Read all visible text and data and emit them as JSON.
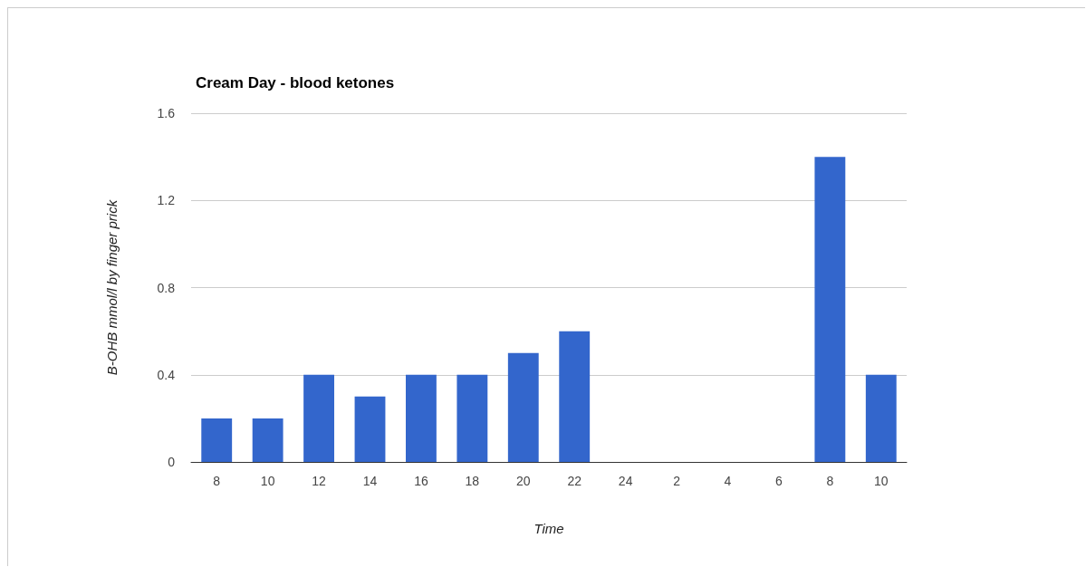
{
  "chart_data": {
    "type": "bar",
    "title": "Cream Day - blood ketones",
    "xlabel": "Time",
    "ylabel": "B-OHB mmol/l by finger prick",
    "categories": [
      "8",
      "10",
      "12",
      "14",
      "16",
      "18",
      "20",
      "22",
      "24",
      "2",
      "4",
      "6",
      "8",
      "10"
    ],
    "values": [
      0.2,
      0.2,
      0.4,
      0.3,
      0.4,
      0.4,
      0.5,
      0.6,
      null,
      null,
      null,
      null,
      1.4,
      0.4
    ],
    "color": "#3366cc",
    "ylim": [
      0,
      1.6
    ],
    "yticks": [
      0,
      0.4,
      0.8,
      1.2,
      1.6
    ],
    "grid": "y"
  }
}
